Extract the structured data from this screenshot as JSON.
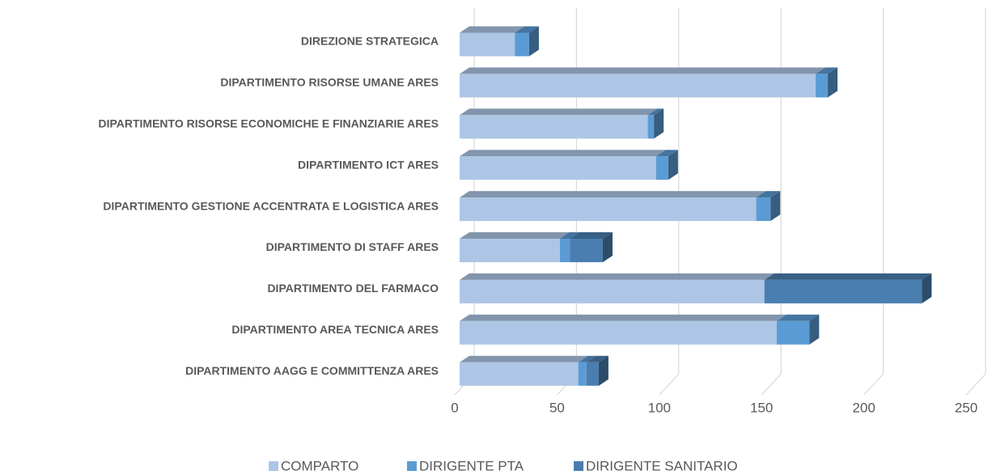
{
  "chart_data": {
    "type": "bar3d_stacked_horizontal",
    "categories": [
      "DIREZIONE STRATEGICA",
      "DIPARTIMENTO RISORSE UMANE ARES",
      "DIPARTIMENTO RISORSE ECONOMICHE E FINANZIARIE ARES",
      "DIPARTIMENTO ICT ARES",
      "DIPARTIMENTO GESTIONE ACCENTRATA E LOGISTICA ARES",
      "DIPARTIMENTO DI STAFF ARES",
      "DIPARTIMENTO DEL FARMACO",
      "DIPARTIMENTO AREA TECNICA ARES",
      "DIPARTIMENTO AAGG E COMMITTENZA ARES"
    ],
    "series": [
      {
        "name": "COMPARTO",
        "color": "#adc6e5",
        "values": [
          27,
          174,
          92,
          96,
          145,
          49,
          149,
          155,
          58
        ]
      },
      {
        "name": "DIRIGENTE PTA",
        "color": "#5b9bd5",
        "values": [
          7,
          6,
          3,
          6,
          7,
          5,
          0,
          16,
          4
        ]
      },
      {
        "name": "DIRIGENTE SANITARIO",
        "color": "#4a7eb0",
        "values": [
          0,
          0,
          0,
          0,
          0,
          16,
          77,
          0,
          6
        ]
      }
    ],
    "xlim": [
      0,
      250
    ],
    "xticks": [
      0,
      50,
      100,
      150,
      200,
      250
    ],
    "grid": true,
    "legend": "bottom"
  }
}
